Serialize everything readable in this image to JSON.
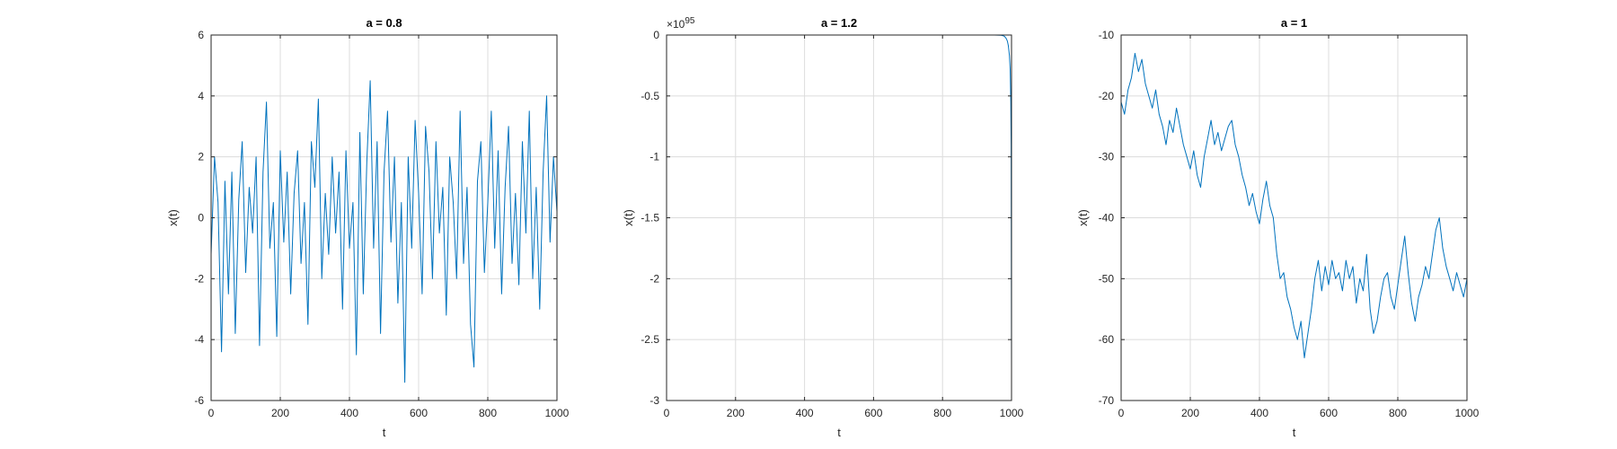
{
  "colors": {
    "series": "#0072BD",
    "grid": "#dcdcdc",
    "axis": "#262626"
  },
  "chart_data": [
    {
      "type": "line",
      "title": "a = 0.8",
      "xlabel": "t",
      "ylabel": "x(t)",
      "xlim": [
        0,
        1000
      ],
      "ylim": [
        -6,
        6
      ],
      "xticks": [
        0,
        200,
        400,
        600,
        800,
        1000
      ],
      "xtick_labels": [
        "0",
        "200",
        "400",
        "600",
        "800",
        "1000"
      ],
      "yticks": [
        -6,
        -4,
        -2,
        0,
        2,
        4,
        6
      ],
      "ytick_labels": [
        "-6",
        "-4",
        "-2",
        "0",
        "2",
        "4",
        "6"
      ],
      "exponent_label": "",
      "grid": true,
      "series": [
        {
          "x": [
            0,
            10,
            20,
            30,
            40,
            50,
            60,
            70,
            80,
            90,
            100,
            110,
            120,
            130,
            140,
            150,
            160,
            170,
            180,
            190,
            200,
            210,
            220,
            230,
            240,
            250,
            260,
            270,
            280,
            290,
            300,
            310,
            320,
            330,
            340,
            350,
            360,
            370,
            380,
            390,
            400,
            410,
            420,
            430,
            440,
            450,
            460,
            470,
            480,
            490,
            500,
            510,
            520,
            530,
            540,
            550,
            560,
            570,
            580,
            590,
            600,
            610,
            620,
            630,
            640,
            650,
            660,
            670,
            680,
            690,
            700,
            710,
            720,
            730,
            740,
            750,
            760,
            770,
            780,
            790,
            800,
            810,
            820,
            830,
            840,
            850,
            860,
            870,
            880,
            890,
            900,
            910,
            920,
            930,
            940,
            950,
            960,
            970,
            980,
            990,
            1000
          ],
          "y": [
            -1.2,
            2.0,
            0.5,
            -4.4,
            1.2,
            -2.5,
            1.5,
            -3.8,
            0.6,
            2.5,
            -1.8,
            1.0,
            -0.5,
            2.0,
            -4.2,
            1.5,
            3.8,
            -1.0,
            0.5,
            -3.9,
            2.2,
            -0.8,
            1.5,
            -2.5,
            0.8,
            2.2,
            -1.5,
            0.5,
            -3.5,
            2.5,
            1.0,
            3.9,
            -2.0,
            0.8,
            -1.2,
            2.0,
            -0.5,
            1.5,
            -3.0,
            2.2,
            -1.0,
            0.5,
            -4.5,
            2.8,
            -2.5,
            1.8,
            4.5,
            -1.0,
            2.5,
            -3.8,
            1.5,
            3.5,
            -0.8,
            2.0,
            -2.8,
            0.5,
            -5.4,
            2.0,
            -1.0,
            3.2,
            0.8,
            -2.5,
            3.0,
            1.5,
            -2.0,
            2.5,
            -0.5,
            1.0,
            -3.2,
            2.0,
            0.5,
            -2.0,
            3.5,
            -1.5,
            1.0,
            -3.5,
            -4.9,
            1.2,
            2.5,
            -1.8,
            0.5,
            3.5,
            -1.0,
            2.2,
            -2.5,
            1.0,
            3.0,
            -1.5,
            0.8,
            -2.2,
            2.5,
            -0.5,
            3.5,
            -2.0,
            1.0,
            -3.0,
            1.5,
            4.0,
            -0.8,
            2.0,
            0.2
          ]
        }
      ]
    },
    {
      "type": "line",
      "title": "a = 1.2",
      "xlabel": "t",
      "ylabel": "x(t)",
      "xlim": [
        0,
        1000
      ],
      "ylim": [
        -3,
        0
      ],
      "xticks": [
        0,
        200,
        400,
        600,
        800,
        1000
      ],
      "xtick_labels": [
        "0",
        "200",
        "400",
        "600",
        "800",
        "1000"
      ],
      "yticks": [
        -3,
        -2.5,
        -2,
        -1.5,
        -1,
        -0.5,
        0
      ],
      "ytick_labels": [
        "-3",
        "-2.5",
        "-2",
        "-1.5",
        "-1",
        "-0.5",
        "0"
      ],
      "exponent_label": "×10",
      "exponent_power": "95",
      "grid": true,
      "series": [
        {
          "x": [
            0,
            200,
            400,
            600,
            800,
            900,
            950,
            960,
            970,
            975,
            980,
            985,
            988,
            991,
            994,
            996,
            998,
            999,
            1000
          ],
          "y": [
            0,
            0,
            0,
            0,
            0,
            0,
            0,
            -0.0005,
            -0.002,
            -0.005,
            -0.012,
            -0.03,
            -0.05,
            -0.09,
            -0.17,
            -0.28,
            -0.55,
            -0.9,
            -2.75
          ]
        }
      ]
    },
    {
      "type": "line",
      "title": "a = 1",
      "xlabel": "t",
      "ylabel": "x(t)",
      "xlim": [
        0,
        1000
      ],
      "ylim": [
        -70,
        -10
      ],
      "xticks": [
        0,
        200,
        400,
        600,
        800,
        1000
      ],
      "xtick_labels": [
        "0",
        "200",
        "400",
        "600",
        "800",
        "1000"
      ],
      "yticks": [
        -70,
        -60,
        -50,
        -40,
        -30,
        -20,
        -10
      ],
      "ytick_labels": [
        "-70",
        "-60",
        "-50",
        "-40",
        "-30",
        "-20",
        "-10"
      ],
      "exponent_label": "",
      "grid": true,
      "series": [
        {
          "x": [
            0,
            10,
            20,
            30,
            40,
            50,
            60,
            70,
            80,
            90,
            100,
            110,
            120,
            130,
            140,
            150,
            160,
            170,
            180,
            190,
            200,
            210,
            220,
            230,
            240,
            250,
            260,
            270,
            280,
            290,
            300,
            310,
            320,
            330,
            340,
            350,
            360,
            370,
            380,
            390,
            400,
            410,
            420,
            430,
            440,
            450,
            460,
            470,
            480,
            490,
            500,
            510,
            520,
            530,
            540,
            550,
            560,
            570,
            580,
            590,
            600,
            610,
            620,
            630,
            640,
            650,
            660,
            670,
            680,
            690,
            700,
            710,
            720,
            730,
            740,
            750,
            760,
            770,
            780,
            790,
            800,
            810,
            820,
            830,
            840,
            850,
            860,
            870,
            880,
            890,
            900,
            910,
            920,
            930,
            940,
            950,
            960,
            970,
            980,
            990,
            1000
          ],
          "y": [
            -21,
            -23,
            -19,
            -17,
            -13,
            -16,
            -14,
            -18,
            -20,
            -22,
            -19,
            -23,
            -25,
            -28,
            -24,
            -26,
            -22,
            -25,
            -28,
            -30,
            -32,
            -29,
            -33,
            -35,
            -30,
            -27,
            -24,
            -28,
            -26,
            -29,
            -27,
            -25,
            -24,
            -28,
            -30,
            -33,
            -35,
            -38,
            -36,
            -39,
            -41,
            -37,
            -34,
            -38,
            -40,
            -46,
            -50,
            -49,
            -53,
            -55,
            -58,
            -60,
            -57,
            -63,
            -59,
            -55,
            -50,
            -47,
            -52,
            -48,
            -51,
            -47,
            -50,
            -49,
            -52,
            -47,
            -50,
            -48,
            -54,
            -50,
            -52,
            -46,
            -55,
            -59,
            -57,
            -53,
            -50,
            -49,
            -53,
            -55,
            -51,
            -47,
            -43,
            -49,
            -54,
            -57,
            -53,
            -51,
            -48,
            -50,
            -46,
            -42,
            -40,
            -45,
            -48,
            -50,
            -52,
            -49,
            -51,
            -53,
            -50
          ]
        }
      ]
    }
  ]
}
